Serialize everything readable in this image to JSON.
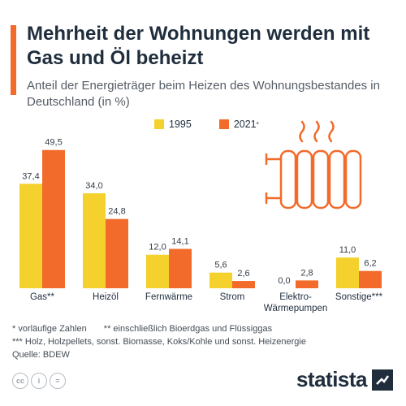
{
  "header": {
    "title": "Mehrheit der Wohnungen werden mit Gas und Öl beheizt",
    "subtitle": "Anteil der Energieträger beim Heizen des Wohnungsbestandes in Deutschland (in %)"
  },
  "colors": {
    "accent": "#f26b2a",
    "series_1995": "#f4d12d",
    "series_2021": "#f26b2a",
    "text": "#1f2d3d"
  },
  "chart_data": {
    "type": "bar",
    "categories": [
      "Gas**",
      "Heizöl",
      "Fernwärme",
      "Strom",
      "Elektro-Wärmepumpen",
      "Sonstige***"
    ],
    "category_lines": [
      [
        "Gas**"
      ],
      [
        "Heizöl"
      ],
      [
        "Fernwärme"
      ],
      [
        "Strom"
      ],
      [
        "Elektro-",
        "Wärmepumpen"
      ],
      [
        "Sonstige***"
      ]
    ],
    "series": [
      {
        "name": "1995",
        "values": [
          37.4,
          34.0,
          12.0,
          5.6,
          0.0,
          11.0
        ],
        "labels": [
          "37,4",
          "34,0",
          "12,0",
          "5,6",
          "0,0",
          "11,0"
        ]
      },
      {
        "name": "2021*",
        "values": [
          49.5,
          24.8,
          14.1,
          2.6,
          2.8,
          6.2
        ],
        "labels": [
          "49,5",
          "24,8",
          "14,1",
          "2,6",
          "2,8",
          "6,2"
        ]
      }
    ],
    "title": "Mehrheit der Wohnungen werden mit Gas und Öl beheizt",
    "subtitle": "Anteil der Energieträger beim Heizen des Wohnungsbestandes in Deutschland (in %)",
    "xlabel": "",
    "ylabel": "",
    "ylim": [
      0,
      50
    ],
    "grid": false,
    "legend": "top"
  },
  "legend": {
    "item1": "1995",
    "item2": "2021",
    "item2_mark": "*"
  },
  "footnotes": {
    "line1_a": "*     vorläufige Zahlen",
    "line1_b": "** einschließlich Bioerdgas und Flüssiggas",
    "line2": "*** Holz, Holzpellets, sonst. Biomasse, Koks/Kohle und sonst. Heizenergie",
    "source": "Quelle: BDEW"
  },
  "license_icons": [
    "cc-icon",
    "info-icon",
    "equals-icon"
  ],
  "brand": {
    "name": "statista"
  }
}
